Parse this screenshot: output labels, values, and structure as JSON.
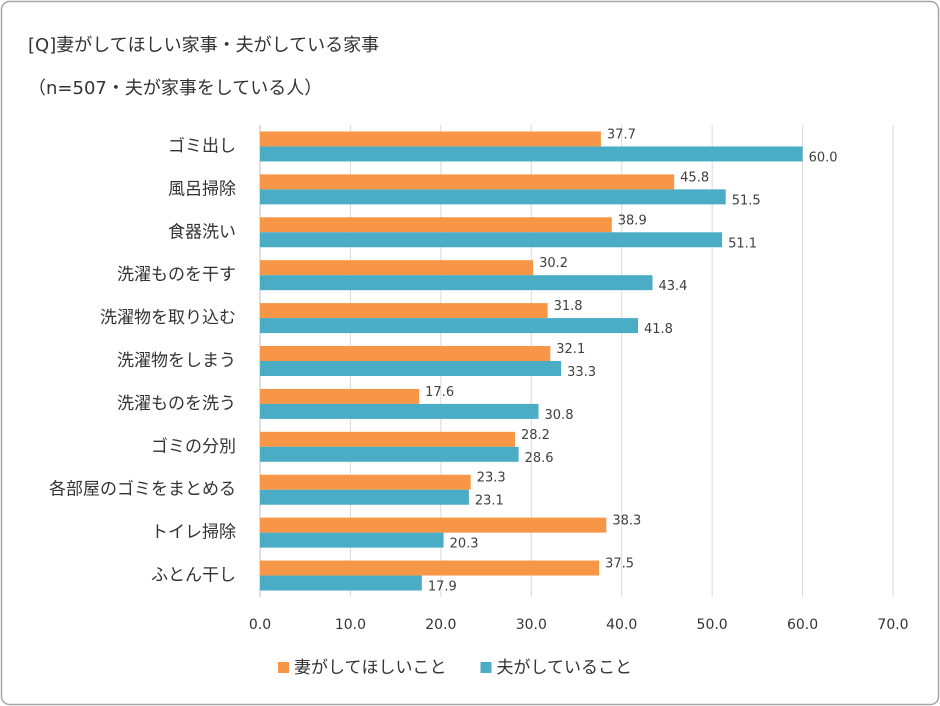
{
  "chart_data": {
    "type": "bar",
    "orientation": "horizontal",
    "title": "[Q]妻がしてほしい家事・夫がしている家事",
    "subtitle": "（n=507・夫が家事をしている人）",
    "categories": [
      "ゴミ出し",
      "風呂掃除",
      "食器洗い",
      "洗濯ものを干す",
      "洗濯物を取り込む",
      "洗濯物をしまう",
      "洗濯ものを洗う",
      "ゴミの分別",
      "各部屋のゴミをまとめる",
      "トイレ掃除",
      "ふとん干し"
    ],
    "series": [
      {
        "name": "妻がしてほしいこと",
        "color": "#f79646",
        "values": [
          37.7,
          45.8,
          38.9,
          30.2,
          31.8,
          32.1,
          17.6,
          28.2,
          23.3,
          38.3,
          37.5
        ],
        "value_labels": [
          "37.7",
          "45.8",
          "38.9",
          "30.2",
          "31.8",
          "32.1",
          "17.6",
          "28.2",
          "23.3",
          "38.3",
          "37.5"
        ]
      },
      {
        "name": "夫がしていること",
        "color": "#4bacc6",
        "values": [
          60,
          51.5,
          51.1,
          43.4,
          41.8,
          33.3,
          30.8,
          28.6,
          23.1,
          20.3,
          17.9
        ],
        "value_labels": [
          "60.0",
          "51.5",
          "51.1",
          "43.4",
          "41.8",
          "33.3",
          "30.8",
          "28.6",
          "23.1",
          "20.3",
          "17.9"
        ]
      }
    ],
    "xlim": [
      0,
      70
    ],
    "xticks": [
      {
        "value": 0,
        "label": "0.0"
      },
      {
        "value": 10,
        "label": "10.0"
      },
      {
        "value": 20,
        "label": "20.0"
      },
      {
        "value": 30,
        "label": "30.0"
      },
      {
        "value": 40,
        "label": "40.0"
      },
      {
        "value": 50,
        "label": "50.0"
      },
      {
        "value": 60,
        "label": "60.0"
      },
      {
        "value": 70,
        "label": "70.0"
      }
    ],
    "grid": true,
    "legend": "bottom"
  }
}
